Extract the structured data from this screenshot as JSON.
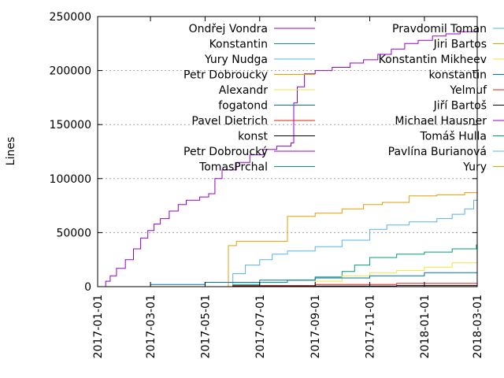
{
  "chart_data": {
    "type": "line",
    "ylabel": "Lines",
    "xlabel": "",
    "ylim": [
      0,
      250000
    ],
    "yticks": [
      0,
      50000,
      100000,
      150000,
      200000,
      250000
    ],
    "ytick_labels": [
      "0",
      "50000",
      "100000",
      "150000",
      "200000",
      "250000"
    ],
    "xlim": [
      "2017-01-01",
      "2018-03-01"
    ],
    "xticks": [
      "2017-01-01",
      "2017-03-01",
      "2017-05-01",
      "2017-07-01",
      "2017-09-01",
      "2017-11-01",
      "2018-01-01",
      "2018-03-01"
    ],
    "grid": true,
    "legend_position": "top",
    "series": [
      {
        "name": "Ondřej Vondra",
        "color": "#9400d3",
        "points": [
          [
            "2017-01-05",
            0
          ],
          [
            "2017-01-10",
            5000
          ],
          [
            "2017-01-15",
            10000
          ],
          [
            "2017-01-22",
            17000
          ],
          [
            "2017-02-01",
            25000
          ],
          [
            "2017-02-10",
            35000
          ],
          [
            "2017-02-18",
            45000
          ],
          [
            "2017-02-26",
            52000
          ],
          [
            "2017-03-05",
            58000
          ],
          [
            "2017-03-12",
            63000
          ],
          [
            "2017-03-22",
            70000
          ],
          [
            "2017-04-01",
            76000
          ],
          [
            "2017-04-10",
            80000
          ],
          [
            "2017-04-25",
            83000
          ],
          [
            "2017-05-05",
            86000
          ],
          [
            "2017-05-12",
            100000
          ],
          [
            "2017-05-20",
            108000
          ],
          [
            "2017-06-05",
            115000
          ],
          [
            "2017-06-20",
            122000
          ],
          [
            "2017-07-05",
            127000
          ],
          [
            "2017-07-20",
            130000
          ],
          [
            "2017-08-05",
            133000
          ],
          [
            "2017-08-08",
            170000
          ],
          [
            "2017-08-12",
            185000
          ],
          [
            "2017-08-20",
            197000
          ],
          [
            "2017-09-01",
            200000
          ],
          [
            "2017-09-20",
            203000
          ],
          [
            "2017-10-10",
            207000
          ],
          [
            "2017-10-25",
            210000
          ],
          [
            "2017-11-10",
            215000
          ],
          [
            "2017-11-25",
            220000
          ],
          [
            "2017-12-10",
            225000
          ],
          [
            "2017-12-25",
            228000
          ],
          [
            "2018-01-10",
            232000
          ],
          [
            "2018-01-25",
            234000
          ],
          [
            "2018-02-10",
            236000
          ],
          [
            "2018-02-28",
            237000
          ]
        ]
      },
      {
        "name": "Konstantin",
        "color": "#009e73",
        "points": [
          [
            "2017-05-01",
            0
          ],
          [
            "2017-06-01",
            2000
          ],
          [
            "2017-07-01",
            4000
          ],
          [
            "2017-08-01",
            6000
          ],
          [
            "2017-09-01",
            9000
          ],
          [
            "2017-10-01",
            14000
          ],
          [
            "2017-10-15",
            20000
          ],
          [
            "2017-11-01",
            27000
          ],
          [
            "2017-12-01",
            30000
          ],
          [
            "2018-01-01",
            32000
          ],
          [
            "2018-02-01",
            35000
          ],
          [
            "2018-02-28",
            39000
          ]
        ]
      },
      {
        "name": "Yury Nudga",
        "color": "#56b4e9",
        "points": [
          [
            "2017-05-20",
            0
          ],
          [
            "2017-06-01",
            12000
          ],
          [
            "2017-06-15",
            20000
          ],
          [
            "2017-07-01",
            25000
          ],
          [
            "2017-07-15",
            30000
          ],
          [
            "2017-08-01",
            33000
          ],
          [
            "2017-09-01",
            37000
          ],
          [
            "2017-10-01",
            43000
          ],
          [
            "2017-11-01",
            53000
          ],
          [
            "2017-11-20",
            57000
          ],
          [
            "2017-12-15",
            60000
          ],
          [
            "2018-01-15",
            63000
          ],
          [
            "2018-02-01",
            67000
          ],
          [
            "2018-02-15",
            72000
          ],
          [
            "2018-02-25",
            80000
          ],
          [
            "2018-03-01",
            82000
          ]
        ]
      },
      {
        "name": "Petr Dobroucky",
        "color": "#e69f00",
        "points": [
          [
            "2017-05-25",
            0
          ],
          [
            "2017-05-27",
            38000
          ],
          [
            "2017-06-05",
            42000
          ],
          [
            "2017-07-31",
            42000
          ],
          [
            "2017-08-01",
            65000
          ],
          [
            "2017-09-01",
            68000
          ],
          [
            "2017-10-01",
            72000
          ],
          [
            "2017-10-25",
            76000
          ],
          [
            "2017-11-15",
            78000
          ],
          [
            "2017-12-15",
            84000
          ],
          [
            "2018-01-15",
            85000
          ],
          [
            "2018-02-15",
            87000
          ],
          [
            "2018-03-01",
            88000
          ]
        ]
      },
      {
        "name": "Alexandr",
        "color": "#f0e442",
        "points": [
          [
            "2017-08-01",
            0
          ],
          [
            "2017-09-01",
            5000
          ],
          [
            "2017-10-01",
            10000
          ],
          [
            "2017-11-01",
            13000
          ],
          [
            "2017-12-01",
            15000
          ],
          [
            "2018-01-01",
            18000
          ],
          [
            "2018-02-01",
            22000
          ],
          [
            "2018-03-01",
            30000
          ]
        ]
      },
      {
        "name": "fogatond",
        "color": "#0072b2",
        "points": [
          [
            "2017-01-01",
            0
          ],
          [
            "2017-03-01",
            2000
          ],
          [
            "2017-05-01",
            4000
          ],
          [
            "2017-07-01",
            6000
          ],
          [
            "2017-09-01",
            8000
          ],
          [
            "2017-11-01",
            10000
          ],
          [
            "2018-01-01",
            13000
          ],
          [
            "2018-03-01",
            16000
          ]
        ]
      },
      {
        "name": "Pavel Dietrich",
        "color": "#e51e10",
        "points": [
          [
            "2017-03-01",
            0
          ],
          [
            "2017-06-01",
            1000
          ],
          [
            "2017-09-01",
            2000
          ],
          [
            "2017-12-01",
            3000
          ],
          [
            "2018-03-01",
            4000
          ]
        ]
      },
      {
        "name": "konst",
        "color": "#000000",
        "points": [
          [
            "2017-01-01",
            0
          ],
          [
            "2017-06-01",
            500
          ],
          [
            "2017-12-01",
            1000
          ],
          [
            "2018-03-01",
            2000
          ]
        ]
      },
      {
        "name": "Petr Dobroucký",
        "color": "#9400d3",
        "points": [
          [
            "2017-01-01",
            0
          ],
          [
            "2018-03-01",
            500
          ]
        ]
      },
      {
        "name": "TomasPrchal",
        "color": "#009e73",
        "points": [
          [
            "2017-01-01",
            0
          ],
          [
            "2018-03-01",
            300
          ]
        ]
      },
      {
        "name": "Pravdomil Toman",
        "color": "#56b4e9",
        "points": [
          [
            "2017-01-01",
            0
          ],
          [
            "2018-03-01",
            200
          ]
        ]
      },
      {
        "name": "Jiri Bartos",
        "color": "#e69f00",
        "points": [
          [
            "2017-01-01",
            0
          ],
          [
            "2018-03-01",
            150
          ]
        ]
      },
      {
        "name": "Konstantin Mikheev",
        "color": "#f0e442",
        "points": [
          [
            "2017-01-01",
            0
          ],
          [
            "2018-03-01",
            100
          ]
        ]
      },
      {
        "name": "konstantin",
        "color": "#0072b2",
        "points": [
          [
            "2017-01-01",
            0
          ],
          [
            "2018-03-01",
            100
          ]
        ]
      },
      {
        "name": "Yelmuf",
        "color": "#e51e10",
        "points": [
          [
            "2017-01-01",
            0
          ],
          [
            "2018-03-01",
            80
          ]
        ]
      },
      {
        "name": "Jiří Bartoš",
        "color": "#000000",
        "points": [
          [
            "2017-01-01",
            0
          ],
          [
            "2018-03-01",
            60
          ]
        ]
      },
      {
        "name": "Michael Hausner",
        "color": "#9400d3",
        "points": [
          [
            "2017-01-01",
            0
          ],
          [
            "2018-03-01",
            50
          ]
        ]
      },
      {
        "name": "Tomáš Hulla",
        "color": "#009e73",
        "points": [
          [
            "2017-01-01",
            0
          ],
          [
            "2018-03-01",
            40
          ]
        ]
      },
      {
        "name": "Pavlína Burianová",
        "color": "#56b4e9",
        "points": [
          [
            "2017-01-01",
            0
          ],
          [
            "2018-03-01",
            30
          ]
        ]
      },
      {
        "name": "Yury",
        "color": "#e69f00",
        "points": [
          [
            "2017-01-01",
            0
          ],
          [
            "2018-03-01",
            20
          ]
        ]
      }
    ]
  }
}
